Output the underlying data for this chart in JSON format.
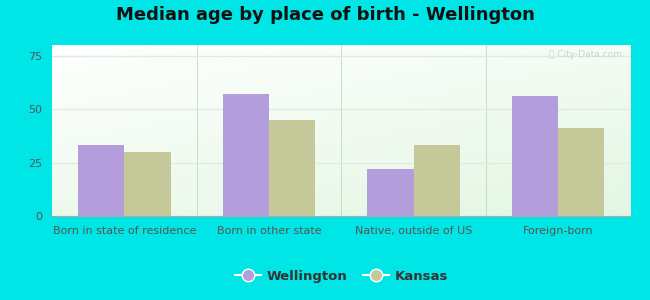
{
  "title": "Median age by place of birth - Wellington",
  "categories": [
    "Born in state of residence",
    "Born in other state",
    "Native, outside of US",
    "Foreign-born"
  ],
  "wellington_values": [
    33,
    57,
    22,
    56
  ],
  "kansas_values": [
    30,
    45,
    33,
    41
  ],
  "wellington_color": "#b39ddb",
  "kansas_color": "#c5c99a",
  "background_outer": "#00e5e5",
  "ylim": [
    0,
    80
  ],
  "yticks": [
    0,
    25,
    50,
    75
  ],
  "bar_width": 0.32,
  "legend_labels": [
    "Wellington",
    "Kansas"
  ],
  "title_fontsize": 13,
  "tick_fontsize": 8,
  "legend_fontsize": 9.5,
  "grid_color": "#ddeedd",
  "watermark_color": "#c8c8c8",
  "bg_top_color": "#f5fffb",
  "bg_bottom_color": "#c8eecc"
}
